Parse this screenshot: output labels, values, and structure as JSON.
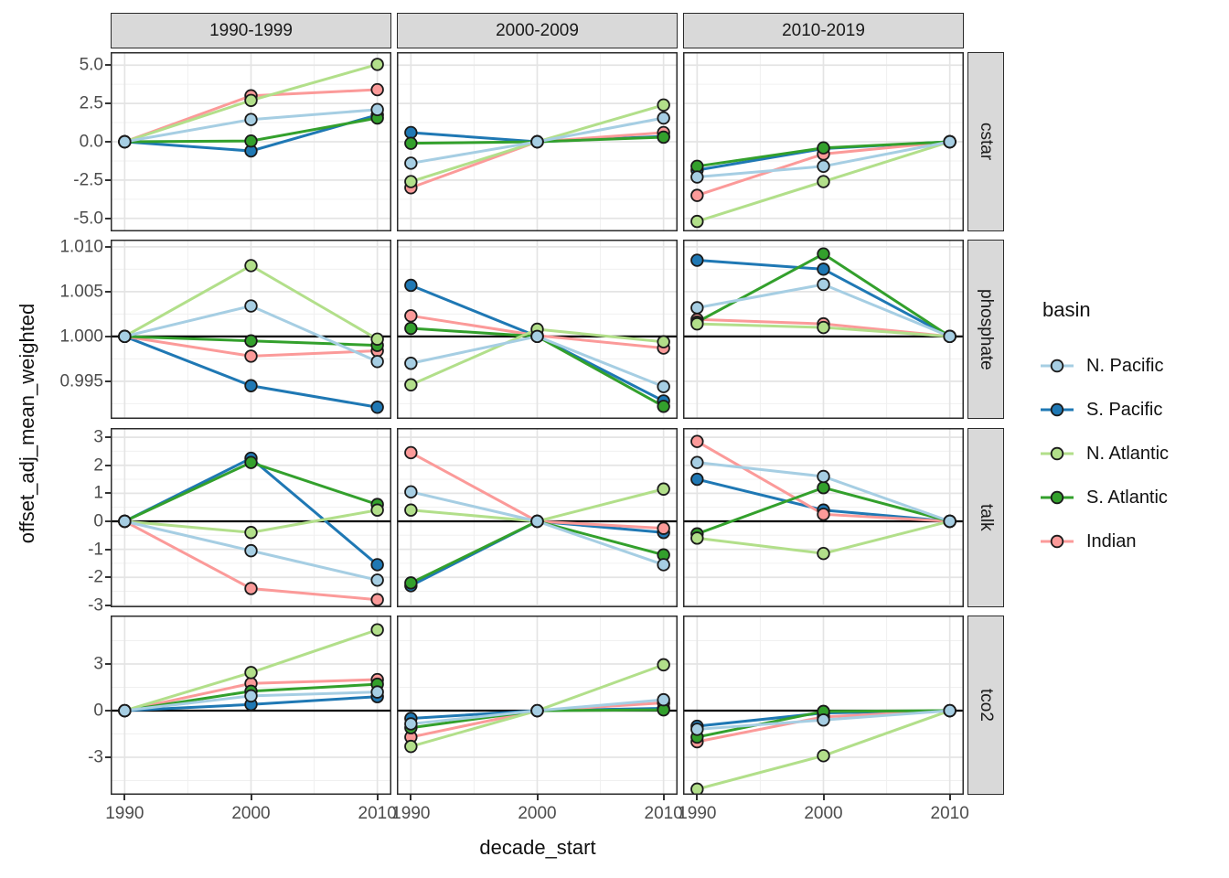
{
  "figure": {
    "x_axis_title": "decade_start",
    "y_axis_title": "offset_adj_mean_weighted",
    "x_tick_labels": [
      "1990",
      "2000",
      "2010"
    ]
  },
  "legend": {
    "title": "basin",
    "items": [
      {
        "label": "N. Pacific",
        "color": "#a6cee3"
      },
      {
        "label": "S. Pacific",
        "color": "#1f78b4"
      },
      {
        "label": "N. Atlantic",
        "color": "#b2df8a"
      },
      {
        "label": "S. Atlantic",
        "color": "#33a02c"
      },
      {
        "label": "Indian",
        "color": "#fb9a99"
      }
    ]
  },
  "chart_data": {
    "type": "line",
    "title": "",
    "xlabel": "decade_start",
    "ylabel": "offset_adj_mean_weighted",
    "x": [
      1990,
      2000,
      2010
    ],
    "x_tick_labels": [
      "1990",
      "2000",
      "2010"
    ],
    "x_minor": [
      1995,
      2005
    ],
    "grid": true,
    "legend_title": "basin",
    "legend_position": "right",
    "facet_columns": [
      "1990-1999",
      "2000-2009",
      "2010-2019"
    ],
    "series": [
      {
        "name": "N. Pacific",
        "color": "#a6cee3"
      },
      {
        "name": "S. Pacific",
        "color": "#1f78b4"
      },
      {
        "name": "N. Atlantic",
        "color": "#b2df8a"
      },
      {
        "name": "S. Atlantic",
        "color": "#33a02c"
      },
      {
        "name": "Indian",
        "color": "#fb9a99"
      }
    ],
    "series_order_draw": [
      "S. Pacific",
      "Indian",
      "S. Atlantic",
      "N. Atlantic",
      "N. Pacific"
    ],
    "facet_rows": [
      {
        "label": "cstar",
        "ylim": [
          -5.85,
          5.85
        ],
        "ticks": [
          5.0,
          2.5,
          0.0,
          -2.5,
          -5.0
        ],
        "tick_labels": [
          "5.0",
          "2.5",
          "0.0",
          "-2.5",
          "-5.0"
        ],
        "minor": [
          3.75,
          1.25,
          -1.25,
          -3.75
        ],
        "refline": null,
        "panels": [
          {
            "column": "1990-1999",
            "values": {
              "N. Pacific": [
                0,
                1.45,
                2.1
              ],
              "S. Pacific": [
                0,
                -0.6,
                1.75
              ],
              "N. Atlantic": [
                0,
                2.7,
                5.05
              ],
              "S. Atlantic": [
                0,
                0.05,
                1.55
              ],
              "Indian": [
                0,
                3.0,
                3.4
              ]
            }
          },
          {
            "column": "2000-2009",
            "values": {
              "N. Pacific": [
                -1.4,
                0,
                1.55
              ],
              "S. Pacific": [
                0.6,
                0,
                0.35
              ],
              "N. Atlantic": [
                -2.6,
                0,
                2.4
              ],
              "S. Atlantic": [
                -0.1,
                0,
                0.3
              ],
              "Indian": [
                -3.0,
                0,
                0.6
              ]
            }
          },
          {
            "column": "2010-2019",
            "values": {
              "N. Pacific": [
                -2.3,
                -1.6,
                0
              ],
              "S. Pacific": [
                -1.85,
                -0.45,
                0
              ],
              "N. Atlantic": [
                -5.2,
                -2.6,
                0
              ],
              "S. Atlantic": [
                -1.6,
                -0.4,
                0
              ],
              "Indian": [
                -3.5,
                -0.8,
                0
              ]
            }
          }
        ]
      },
      {
        "label": "phosphate",
        "ylim": [
          0.9908,
          1.0108
        ],
        "ticks": [
          1.01,
          1.005,
          1.0,
          0.995
        ],
        "tick_labels": [
          "1.010",
          "1.005",
          "1.000",
          "0.995"
        ],
        "minor": [
          1.0075,
          1.0025,
          0.9975,
          0.9925
        ],
        "refline": 1.0,
        "panels": [
          {
            "column": "1990-1999",
            "values": {
              "N. Pacific": [
                1.0,
                1.0034,
                0.9972
              ],
              "S. Pacific": [
                1.0,
                0.9945,
                0.9921
              ],
              "N. Atlantic": [
                1.0,
                1.0079,
                0.9997
              ],
              "S. Atlantic": [
                1.0,
                0.9995,
                0.999
              ],
              "Indian": [
                1.0,
                0.9978,
                0.9984
              ]
            }
          },
          {
            "column": "2000-2009",
            "values": {
              "N. Pacific": [
                0.997,
                1.0,
                0.9944
              ],
              "S. Pacific": [
                1.0057,
                1.0,
                0.9928
              ],
              "N. Atlantic": [
                0.9946,
                1.0008,
                0.9994
              ],
              "S. Atlantic": [
                1.0009,
                1.0,
                0.9922
              ],
              "Indian": [
                1.0023,
                1.0001,
                0.9987
              ]
            }
          },
          {
            "column": "2010-2019",
            "values": {
              "N. Pacific": [
                1.0032,
                1.0058,
                1.0
              ],
              "S. Pacific": [
                1.0085,
                1.0075,
                1.0
              ],
              "N. Atlantic": [
                1.0014,
                1.001,
                1.0
              ],
              "S. Atlantic": [
                1.0016,
                1.0092,
                1.0
              ],
              "Indian": [
                1.0019,
                1.0014,
                1.0
              ]
            }
          }
        ]
      },
      {
        "label": "talk",
        "ylim": [
          -3.07,
          3.33
        ],
        "ticks": [
          3,
          2,
          1,
          0,
          -1,
          -2,
          -3
        ],
        "tick_labels": [
          "3",
          "2",
          "1",
          "0",
          "-1",
          "-2",
          "-3"
        ],
        "minor": [
          2.5,
          1.5,
          0.5,
          -0.5,
          -1.5,
          -2.5
        ],
        "refline": 0,
        "panels": [
          {
            "column": "1990-1999",
            "values": {
              "N. Pacific": [
                0,
                -1.05,
                -2.1
              ],
              "S. Pacific": [
                0,
                2.25,
                -1.55
              ],
              "N. Atlantic": [
                0,
                -0.4,
                0.4
              ],
              "S. Atlantic": [
                0,
                2.1,
                0.6
              ],
              "Indian": [
                0,
                -2.4,
                -2.8
              ]
            }
          },
          {
            "column": "2000-2009",
            "values": {
              "N. Pacific": [
                1.05,
                0,
                -1.55
              ],
              "S. Pacific": [
                -2.3,
                0,
                -0.4
              ],
              "N. Atlantic": [
                0.4,
                0,
                1.15
              ],
              "S. Atlantic": [
                -2.2,
                0,
                -1.2
              ],
              "Indian": [
                2.45,
                0,
                -0.25
              ]
            }
          },
          {
            "column": "2010-2019",
            "values": {
              "N. Pacific": [
                2.1,
                1.6,
                0
              ],
              "S. Pacific": [
                1.5,
                0.4,
                0
              ],
              "N. Atlantic": [
                -0.6,
                -1.15,
                0
              ],
              "S. Atlantic": [
                -0.45,
                1.2,
                0
              ],
              "Indian": [
                2.85,
                0.25,
                0
              ]
            }
          }
        ]
      },
      {
        "label": "tco2",
        "ylim": [
          -5.41,
          6.12
        ],
        "ticks": [
          3,
          0,
          -3
        ],
        "tick_labels": [
          "3",
          "0",
          "-3"
        ],
        "minor": [
          4.5,
          1.5,
          -1.5,
          -4.5
        ],
        "refline": 0,
        "panels": [
          {
            "column": "1990-1999",
            "values": {
              "N. Pacific": [
                0,
                0.95,
                1.2
              ],
              "S. Pacific": [
                0,
                0.4,
                0.9
              ],
              "N. Atlantic": [
                0,
                2.45,
                5.2
              ],
              "S. Atlantic": [
                0,
                1.25,
                1.7
              ],
              "Indian": [
                0,
                1.75,
                2.0
              ]
            }
          },
          {
            "column": "2000-2009",
            "values": {
              "N. Pacific": [
                -0.85,
                0,
                0.7
              ],
              "S. Pacific": [
                -0.5,
                0,
                0.15
              ],
              "N. Atlantic": [
                -2.3,
                0,
                2.95
              ],
              "S. Atlantic": [
                -1.1,
                0,
                0.05
              ],
              "Indian": [
                -1.7,
                0,
                0.5
              ]
            }
          },
          {
            "column": "2010-2019",
            "values": {
              "N. Pacific": [
                -1.2,
                -0.6,
                0
              ],
              "S. Pacific": [
                -1.0,
                -0.15,
                0
              ],
              "N. Atlantic": [
                -5.05,
                -2.9,
                0
              ],
              "S. Atlantic": [
                -1.7,
                -0.05,
                0
              ],
              "Indian": [
                -2.0,
                -0.4,
                0
              ]
            }
          }
        ]
      }
    ]
  }
}
